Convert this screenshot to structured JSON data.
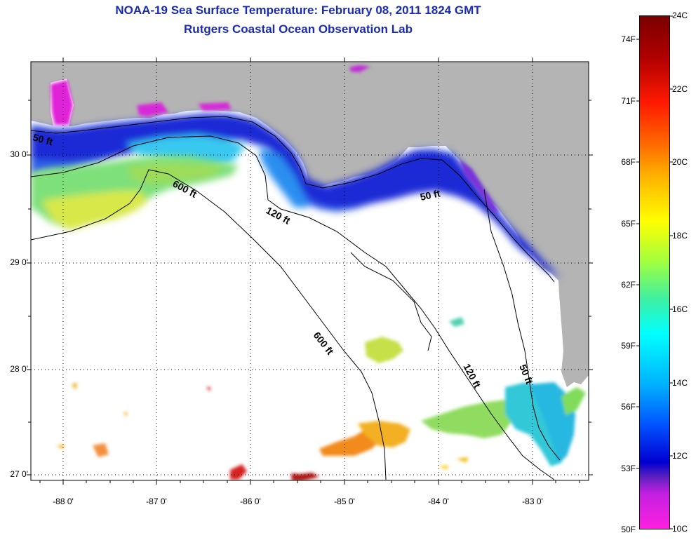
{
  "title_line1": "NOAA-19 Sea Surface Temperature:  February 08, 2011 1824 GMT",
  "title_line2": "Rutgers Coastal Ocean Observation Lab",
  "latitude_labels": [
    "30 0'",
    "29 0'",
    "28 0'",
    "27 0'"
  ],
  "longitude_labels": [
    "-88 0'",
    "-87 0'",
    "-86 0'",
    "-85 0'",
    "-84 0'",
    "-83 0'"
  ],
  "depth_contour_labels": {
    "ft50_west": "50 ft",
    "ft600_north": "600 ft",
    "ft120_north": "120 ft",
    "ft50_bigbend": "50 ft",
    "ft600_south": "600 ft",
    "ft120_south": "120 ft",
    "ft50_south": "50 ft"
  },
  "colorbar": {
    "fahrenheit_labels": [
      "74F",
      "71F",
      "68F",
      "65F",
      "62F",
      "59F",
      "56F",
      "53F",
      "50F"
    ],
    "celsius_labels": [
      "24C",
      "22C",
      "20C",
      "18C",
      "16C",
      "14C",
      "12C",
      "10C"
    ]
  },
  "colors": {
    "land": "#b4b4b4",
    "title": "#1a2bb3"
  }
}
